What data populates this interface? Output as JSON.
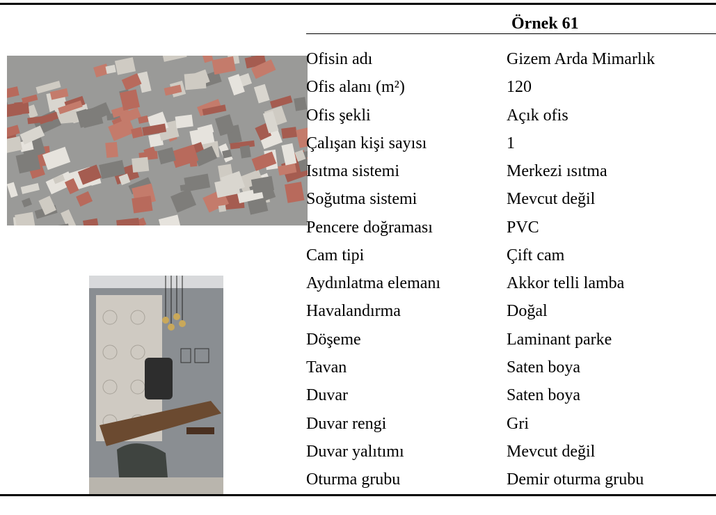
{
  "header": {
    "title": "Örnek 61"
  },
  "table": {
    "rows": [
      [
        "Ofisin adı",
        "Gizem Arda Mimarlık"
      ],
      [
        "Ofis alanı (m²)",
        "120"
      ],
      [
        "Ofis şekli",
        "Açık ofis"
      ],
      [
        "Çalışan kişi sayısı",
        "1"
      ],
      [
        "Isıtma sistemi",
        "Merkezi ısıtma"
      ],
      [
        "Soğutma sistemi",
        "Mevcut değil"
      ],
      [
        "Pencere doğraması",
        "PVC"
      ],
      [
        "Cam tipi",
        "Çift cam"
      ],
      [
        "Aydınlatma elemanı",
        "Akkor telli lamba"
      ],
      [
        "Havalandırma",
        "Doğal"
      ],
      [
        "Döşeme",
        "Laminant parke"
      ],
      [
        "Tavan",
        "Saten boya"
      ],
      [
        "Duvar",
        "Saten boya"
      ],
      [
        "Duvar rengi",
        "Gri"
      ],
      [
        "Duvar yalıtımı",
        "Mevcut değil"
      ],
      [
        "Oturma grubu",
        "Demir oturma grubu"
      ]
    ]
  }
}
